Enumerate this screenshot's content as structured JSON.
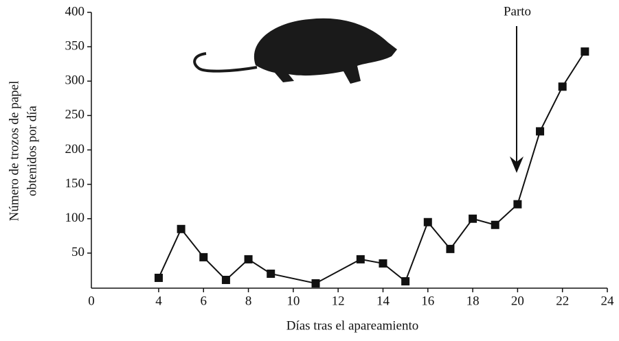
{
  "chart_data": {
    "type": "line",
    "x_label": "Días tras el apareamiento",
    "y_label": [
      "Número de trozos de papel",
      "obtenidos por día"
    ],
    "annotation": "Parto",
    "x": [
      4,
      5,
      6,
      7,
      8,
      9,
      11,
      13,
      14,
      15,
      16,
      17,
      18,
      19,
      20,
      21,
      22,
      23
    ],
    "series": [
      {
        "color": "#111111",
        "values": [
          14,
          85,
          44,
          11,
          41,
          20,
          6,
          41,
          35,
          9,
          95,
          56,
          100,
          91,
          121,
          227,
          292,
          343
        ]
      }
    ],
    "xlim": [
      1,
      24
    ],
    "xticks": [
      4,
      6,
      8,
      10,
      12,
      14,
      16,
      18,
      20,
      22,
      24
    ],
    "ylim": [
      0,
      400
    ],
    "yticks": [
      0,
      50,
      100,
      150,
      200,
      250,
      300,
      350,
      400
    ],
    "grid": false
  }
}
